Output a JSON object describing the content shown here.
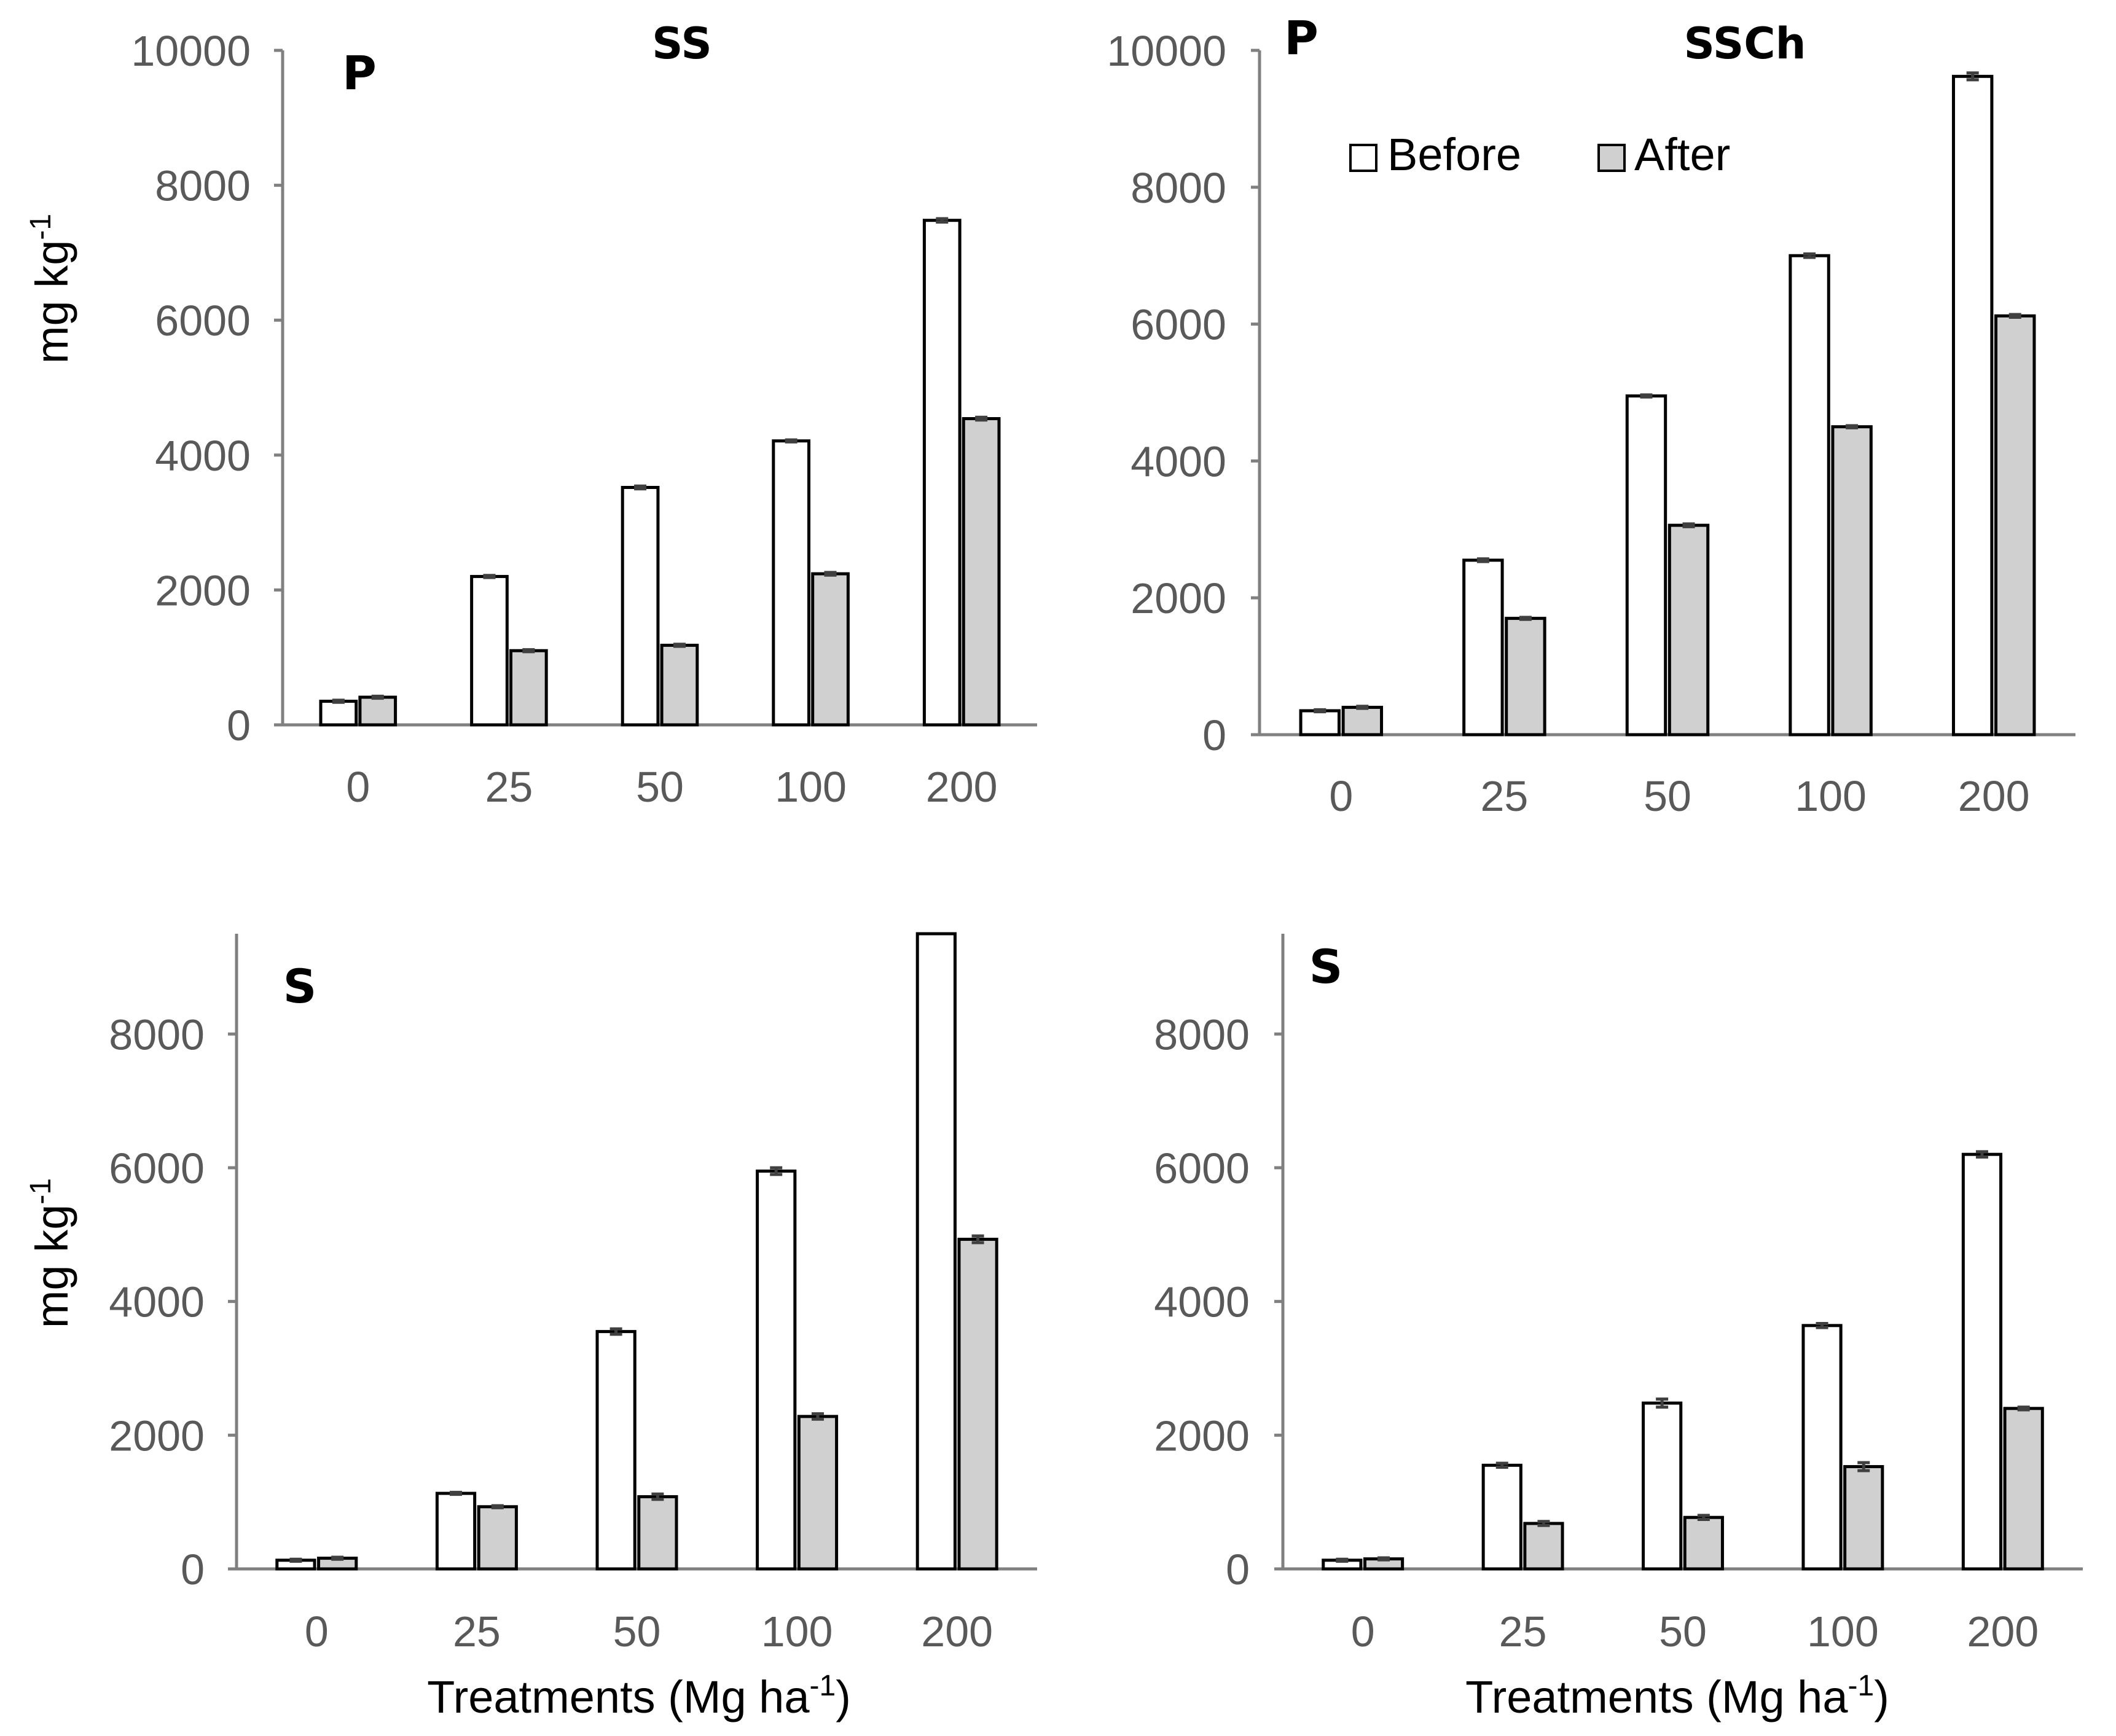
{
  "figure": {
    "colors": {
      "before": "#ffffff",
      "after": "#d0d0d0",
      "axis": "#808080",
      "tick_text": "#595959"
    }
  },
  "legend": {
    "before": "Before",
    "after": "After"
  },
  "chart_data": [
    {
      "type": "bar",
      "panel": "P",
      "title": "SS",
      "ylabel": "mg kg",
      "ylabel_sup": "-1",
      "xlabel": "",
      "ylim": [
        0,
        10000
      ],
      "yticks": [
        0,
        2000,
        4000,
        6000,
        8000,
        10000
      ],
      "categories": [
        "0",
        "25",
        "50",
        "100",
        "200"
      ],
      "series": [
        {
          "name": "Before",
          "values": [
            350,
            2200,
            3520,
            4210,
            7480
          ],
          "errors": [
            15,
            15,
            20,
            15,
            25
          ]
        },
        {
          "name": "After",
          "values": [
            410,
            1100,
            1180,
            2240,
            4540
          ],
          "errors": [
            15,
            15,
            15,
            20,
            20
          ]
        }
      ]
    },
    {
      "type": "bar",
      "panel": "P",
      "title": "SSCh",
      "ylabel": "",
      "ylabel_sup": "",
      "xlabel": "",
      "ylim": [
        0,
        10000
      ],
      "yticks": [
        0,
        2000,
        4000,
        6000,
        8000,
        10000
      ],
      "categories": [
        "0",
        "25",
        "50",
        "100",
        "200"
      ],
      "series": [
        {
          "name": "Before",
          "values": [
            350,
            2550,
            4950,
            7000,
            9620
          ],
          "errors": [
            15,
            20,
            15,
            25,
            50
          ]
        },
        {
          "name": "After",
          "values": [
            400,
            1700,
            3060,
            4500,
            6120
          ],
          "errors": [
            15,
            15,
            20,
            15,
            20
          ]
        }
      ]
    },
    {
      "type": "bar",
      "panel": "S",
      "title": "",
      "ylabel": "mg kg",
      "ylabel_sup": "-1",
      "xlabel": "Treatments (Mg ha",
      "xlabel_sup": "-1",
      "xlabel_end": ")",
      "ylim": [
        0,
        9500
      ],
      "yticks": [
        0,
        2000,
        4000,
        6000,
        8000
      ],
      "categories": [
        "0",
        "25",
        "50",
        "100",
        "200"
      ],
      "series": [
        {
          "name": "Before",
          "values": [
            130,
            1130,
            3550,
            5950,
            9500
          ],
          "errors": [
            15,
            15,
            40,
            50,
            0
          ]
        },
        {
          "name": "After",
          "values": [
            160,
            930,
            1080,
            2280,
            4930
          ],
          "errors": [
            15,
            15,
            40,
            40,
            50
          ]
        }
      ]
    },
    {
      "type": "bar",
      "panel": "S",
      "title": "",
      "ylabel": "",
      "ylabel_sup": "",
      "xlabel": "Treatments (Mg ha",
      "xlabel_sup": "-1",
      "xlabel_end": ")",
      "ylim": [
        0,
        9500
      ],
      "yticks": [
        0,
        2000,
        4000,
        6000,
        8000
      ],
      "categories": [
        "0",
        "25",
        "50",
        "100",
        "200"
      ],
      "series": [
        {
          "name": "Before",
          "values": [
            130,
            1550,
            2480,
            3640,
            6200
          ],
          "errors": [
            15,
            30,
            60,
            30,
            40
          ]
        },
        {
          "name": "After",
          "values": [
            150,
            680,
            770,
            1530,
            2400
          ],
          "errors": [
            15,
            30,
            30,
            60,
            20
          ]
        }
      ]
    }
  ]
}
